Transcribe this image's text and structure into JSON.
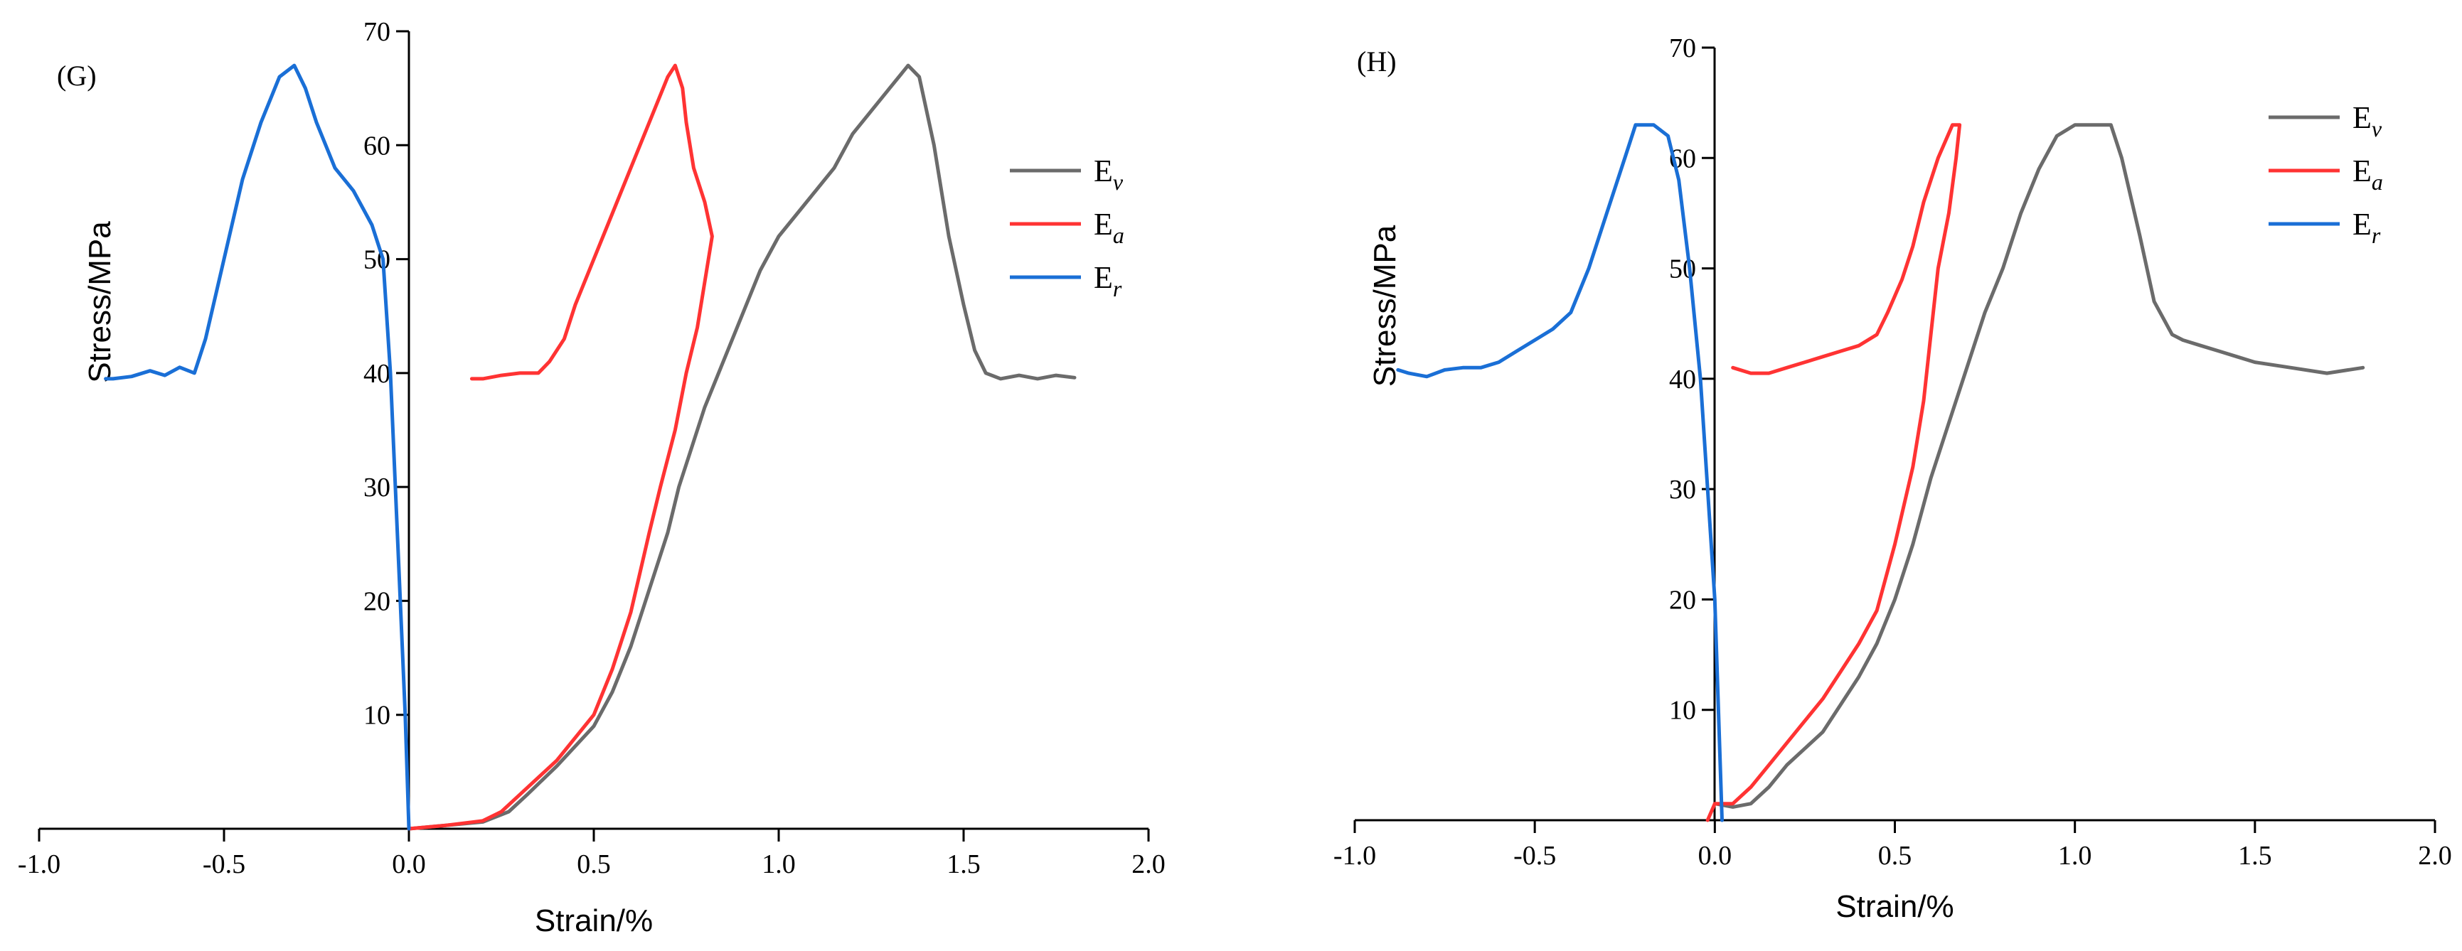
{
  "colors": {
    "Ev": "#6b6b6b",
    "Ea": "#ff3333",
    "Er": "#1a6fd6",
    "axis": "#000000"
  },
  "chart_data": [
    {
      "type": "line",
      "panel_label": "(G)",
      "xlabel": "Strain/%",
      "ylabel": "Stress/MPa",
      "xlim": [
        -1.0,
        2.0
      ],
      "ylim": [
        0,
        70
      ],
      "x_ticks": [
        -1.0,
        -0.5,
        0.0,
        0.5,
        1.0,
        1.5,
        2.0
      ],
      "x_tick_labels": [
        "-1.0",
        "-0.5",
        "0.0",
        "0.5",
        "1.0",
        "1.5",
        "2.0"
      ],
      "y_ticks": [
        10,
        20,
        30,
        40,
        50,
        60,
        70
      ],
      "y_tick_labels": [
        "10",
        "20",
        "30",
        "40",
        "50",
        "60",
        "70"
      ],
      "legend": [
        {
          "key": "Ev",
          "base": "E",
          "sub": "v"
        },
        {
          "key": "Ea",
          "base": "E",
          "sub": "a"
        },
        {
          "key": "Er",
          "base": "E",
          "sub": "r"
        }
      ],
      "series": [
        {
          "name": "Ev",
          "color_key": "Ev",
          "points": [
            [
              0.0,
              0
            ],
            [
              0.1,
              0.3
            ],
            [
              0.2,
              0.6
            ],
            [
              0.27,
              1.5
            ],
            [
              0.32,
              3
            ],
            [
              0.4,
              5.5
            ],
            [
              0.5,
              9
            ],
            [
              0.55,
              12
            ],
            [
              0.6,
              16
            ],
            [
              0.65,
              21
            ],
            [
              0.7,
              26
            ],
            [
              0.73,
              30
            ],
            [
              0.76,
              33
            ],
            [
              0.8,
              37
            ],
            [
              0.85,
              41
            ],
            [
              0.9,
              45
            ],
            [
              0.95,
              49
            ],
            [
              1.0,
              52
            ],
            [
              1.05,
              54
            ],
            [
              1.1,
              56
            ],
            [
              1.15,
              58
            ],
            [
              1.2,
              61
            ],
            [
              1.25,
              63
            ],
            [
              1.3,
              65
            ],
            [
              1.35,
              67
            ],
            [
              1.38,
              66
            ],
            [
              1.42,
              60
            ],
            [
              1.46,
              52
            ],
            [
              1.5,
              46
            ],
            [
              1.53,
              42
            ],
            [
              1.56,
              40
            ],
            [
              1.6,
              39.5
            ],
            [
              1.65,
              39.8
            ],
            [
              1.7,
              39.5
            ],
            [
              1.75,
              39.8
            ],
            [
              1.8,
              39.6
            ]
          ]
        },
        {
          "name": "Ea",
          "color_key": "Ea",
          "points": [
            [
              0.0,
              0
            ],
            [
              0.1,
              0.3
            ],
            [
              0.2,
              0.7
            ],
            [
              0.25,
              1.5
            ],
            [
              0.3,
              3
            ],
            [
              0.4,
              6
            ],
            [
              0.5,
              10
            ],
            [
              0.55,
              14
            ],
            [
              0.6,
              19
            ],
            [
              0.65,
              26
            ],
            [
              0.68,
              30
            ],
            [
              0.72,
              35
            ],
            [
              0.75,
              40
            ],
            [
              0.78,
              44
            ],
            [
              0.8,
              48
            ],
            [
              0.82,
              52
            ],
            [
              0.8,
              55
            ],
            [
              0.77,
              58
            ],
            [
              0.75,
              62
            ],
            [
              0.74,
              65
            ],
            [
              0.72,
              67
            ],
            [
              0.7,
              66
            ],
            [
              0.65,
              62
            ],
            [
              0.6,
              58
            ],
            [
              0.55,
              54
            ],
            [
              0.5,
              50
            ],
            [
              0.45,
              46
            ],
            [
              0.42,
              43
            ],
            [
              0.38,
              41
            ],
            [
              0.35,
              40
            ],
            [
              0.3,
              40
            ],
            [
              0.25,
              39.8
            ],
            [
              0.2,
              39.5
            ],
            [
              0.17,
              39.5
            ]
          ]
        },
        {
          "name": "Er",
          "color_key": "Er",
          "points": [
            [
              0.0,
              0
            ],
            [
              -0.01,
              10
            ],
            [
              -0.03,
              25
            ],
            [
              -0.05,
              40
            ],
            [
              -0.07,
              50
            ],
            [
              -0.1,
              53
            ],
            [
              -0.15,
              56
            ],
            [
              -0.2,
              58
            ],
            [
              -0.25,
              62
            ],
            [
              -0.28,
              65
            ],
            [
              -0.31,
              67
            ],
            [
              -0.35,
              66
            ],
            [
              -0.4,
              62
            ],
            [
              -0.45,
              57
            ],
            [
              -0.5,
              50
            ],
            [
              -0.55,
              43
            ],
            [
              -0.58,
              40
            ],
            [
              -0.62,
              40.5
            ],
            [
              -0.66,
              39.8
            ],
            [
              -0.7,
              40.2
            ],
            [
              -0.75,
              39.7
            ],
            [
              -0.8,
              39.5
            ],
            [
              -0.82,
              39.5
            ]
          ]
        }
      ]
    },
    {
      "type": "line",
      "panel_label": "(H)",
      "xlabel": "Strain/%",
      "ylabel": "Stress/MPa",
      "xlim": [
        -1.0,
        2.0
      ],
      "ylim": [
        0,
        70
      ],
      "x_ticks": [
        -1.0,
        -0.5,
        0.0,
        0.5,
        1.0,
        1.5,
        2.0
      ],
      "x_tick_labels": [
        "-1.0",
        "-0.5",
        "0.0",
        "0.5",
        "1.0",
        "1.5",
        "2.0"
      ],
      "y_ticks": [
        10,
        20,
        30,
        40,
        50,
        60,
        70
      ],
      "y_tick_labels": [
        "10",
        "20",
        "30",
        "40",
        "50",
        "60",
        "70"
      ],
      "legend": [
        {
          "key": "Ev",
          "base": "E",
          "sub": "v"
        },
        {
          "key": "Ea",
          "base": "E",
          "sub": "a"
        },
        {
          "key": "Er",
          "base": "E",
          "sub": "r"
        }
      ],
      "series": [
        {
          "name": "Ev",
          "color_key": "Ev",
          "points": [
            [
              0.0,
              1.5
            ],
            [
              0.05,
              1.2
            ],
            [
              0.1,
              1.5
            ],
            [
              0.15,
              3
            ],
            [
              0.2,
              5
            ],
            [
              0.3,
              8
            ],
            [
              0.4,
              13
            ],
            [
              0.45,
              16
            ],
            [
              0.5,
              20
            ],
            [
              0.55,
              25
            ],
            [
              0.6,
              31
            ],
            [
              0.65,
              36
            ],
            [
              0.7,
              41
            ],
            [
              0.75,
              46
            ],
            [
              0.8,
              50
            ],
            [
              0.85,
              55
            ],
            [
              0.9,
              59
            ],
            [
              0.95,
              62
            ],
            [
              1.0,
              63
            ],
            [
              1.05,
              63
            ],
            [
              1.1,
              63
            ],
            [
              1.13,
              60
            ],
            [
              1.18,
              53
            ],
            [
              1.22,
              47
            ],
            [
              1.27,
              44
            ],
            [
              1.3,
              43.5
            ],
            [
              1.35,
              43
            ],
            [
              1.4,
              42.5
            ],
            [
              1.45,
              42
            ],
            [
              1.5,
              41.5
            ],
            [
              1.6,
              41
            ],
            [
              1.7,
              40.5
            ],
            [
              1.8,
              41
            ]
          ]
        },
        {
          "name": "Ea",
          "color_key": "Ea",
          "points": [
            [
              -0.02,
              0
            ],
            [
              0.0,
              1.5
            ],
            [
              0.05,
              1.5
            ],
            [
              0.1,
              3
            ],
            [
              0.15,
              5
            ],
            [
              0.2,
              7
            ],
            [
              0.25,
              9
            ],
            [
              0.3,
              11
            ],
            [
              0.35,
              13.5
            ],
            [
              0.4,
              16
            ],
            [
              0.45,
              19
            ],
            [
              0.5,
              25
            ],
            [
              0.55,
              32
            ],
            [
              0.58,
              38
            ],
            [
              0.6,
              44
            ],
            [
              0.62,
              50
            ],
            [
              0.65,
              55
            ],
            [
              0.67,
              60
            ],
            [
              0.68,
              63
            ],
            [
              0.66,
              63
            ],
            [
              0.62,
              60
            ],
            [
              0.58,
              56
            ],
            [
              0.55,
              52
            ],
            [
              0.52,
              49
            ],
            [
              0.48,
              46
            ],
            [
              0.45,
              44
            ],
            [
              0.4,
              43
            ],
            [
              0.35,
              42.5
            ],
            [
              0.3,
              42
            ],
            [
              0.25,
              41.5
            ],
            [
              0.2,
              41
            ],
            [
              0.15,
              40.5
            ],
            [
              0.1,
              40.5
            ],
            [
              0.05,
              41
            ]
          ]
        },
        {
          "name": "Er",
          "color_key": "Er",
          "points": [
            [
              0.02,
              0
            ],
            [
              0.01,
              10
            ],
            [
              0.0,
              20
            ],
            [
              -0.02,
              30
            ],
            [
              -0.04,
              40
            ],
            [
              -0.07,
              50
            ],
            [
              -0.1,
              58
            ],
            [
              -0.13,
              62
            ],
            [
              -0.17,
              63
            ],
            [
              -0.22,
              63
            ],
            [
              -0.25,
              60
            ],
            [
              -0.3,
              55
            ],
            [
              -0.35,
              50
            ],
            [
              -0.4,
              46
            ],
            [
              -0.45,
              44.5
            ],
            [
              -0.5,
              43.5
            ],
            [
              -0.55,
              42.5
            ],
            [
              -0.6,
              41.5
            ],
            [
              -0.65,
              41
            ],
            [
              -0.7,
              41
            ],
            [
              -0.75,
              40.8
            ],
            [
              -0.8,
              40.2
            ],
            [
              -0.85,
              40.5
            ],
            [
              -0.88,
              40.8
            ]
          ]
        }
      ]
    }
  ]
}
